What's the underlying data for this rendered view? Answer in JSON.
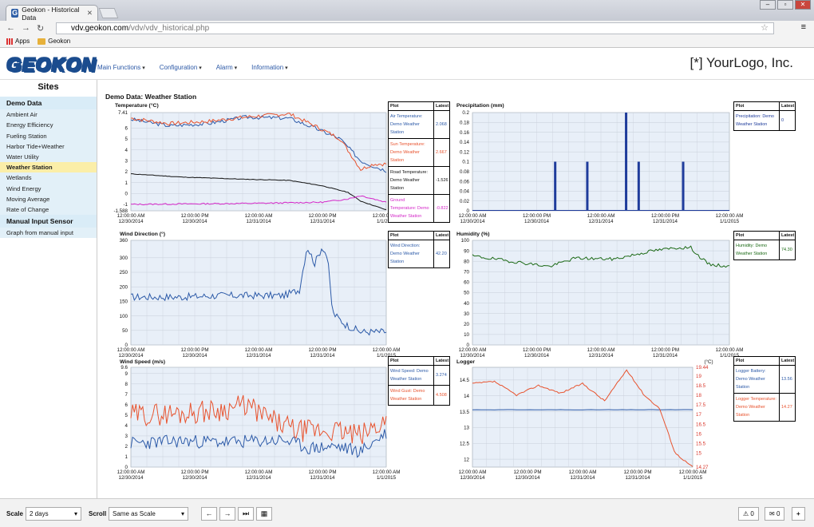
{
  "browser": {
    "tab_title": "Geokon - Historical Data",
    "tab_icon": "G",
    "url_host": "vdv.geokon.com",
    "url_path": "/vdv/vdv_historical.php",
    "bookmarks": [
      "Apps",
      "Geokon"
    ]
  },
  "header": {
    "logo": "GEOKON",
    "nav": [
      "Main Functions",
      "Configuration",
      "Alarm",
      "Information"
    ],
    "your_logo": "[*] YourLogo, Inc."
  },
  "sidebar": {
    "title": "Sites",
    "groups": [
      {
        "label": "Demo Data",
        "items": [
          "Ambient Air",
          "Energy Efficiency",
          "Fueling Station",
          "Harbor Tide+Weather",
          "Water Utility",
          "Weather Station",
          "Wetlands",
          "Wind Energy",
          "Moving Average",
          "Rate of Change"
        ],
        "active": "Weather Station"
      },
      {
        "label": "Manual Input Sensor",
        "items": [
          "Graph from manual input"
        ]
      }
    ]
  },
  "main": {
    "title": "Demo Data: Weather Station"
  },
  "x_ticks": [
    [
      "12:00:00 AM",
      "12/30/2014"
    ],
    [
      "12:00:00 PM",
      "12/30/2014"
    ],
    [
      "12:00:00 AM",
      "12/31/2014"
    ],
    [
      "12:00:00 PM",
      "12/31/2014"
    ],
    [
      "12:00:00 AM",
      "1/1/2015"
    ]
  ],
  "legend_headers": {
    "plot": "Plot",
    "latest": "Latest"
  },
  "chart_data": [
    {
      "type": "line",
      "title": "Temperature (°C)",
      "yticks": [
        "7.41",
        "6",
        "5",
        "4",
        "3",
        "2",
        "1",
        "0",
        "-1",
        "-1.588"
      ],
      "ylim": [
        -1.588,
        7.41
      ],
      "series": [
        {
          "name": "Air Temperature: Demo Weather Station",
          "latest": "2.068",
          "color": "#2c5aa8"
        },
        {
          "name": "Sun Temperature: Demo Weather Station",
          "latest": "2.667",
          "color": "#e8532e"
        },
        {
          "name": "Road Temperature: Demo Weather Station",
          "latest": "-1.526",
          "color": "#111111"
        },
        {
          "name": "Ground Temperature: Demo Weather Station",
          "latest": "-0.822",
          "color": "#d427c8"
        }
      ]
    },
    {
      "type": "bar",
      "title": "Precipitation (mm)",
      "yticks": [
        "0.2",
        "0.18",
        "0.16",
        "0.14",
        "0.12",
        "0.1",
        "0.08",
        "0.06",
        "0.04",
        "0.02",
        "0"
      ],
      "ylim": [
        0,
        0.2
      ],
      "bars_x_fraction": [
        0.322,
        0.447,
        0.598,
        0.647,
        0.82
      ],
      "bars_values": [
        0.1,
        0.1,
        0.2,
        0.1,
        0.1
      ],
      "series": [
        {
          "name": "Precipitation: Demo Weather Station",
          "latest": "0",
          "color": "#1f3c9b"
        }
      ]
    },
    {
      "type": "line",
      "title": "Wind Direction (°)",
      "yticks": [
        "360",
        "300",
        "250",
        "200",
        "150",
        "100",
        "50",
        "0"
      ],
      "ylim": [
        0,
        360
      ],
      "series": [
        {
          "name": "Wind Direction: Demo Weather Station",
          "latest": "42.20",
          "color": "#2c5aa8"
        }
      ]
    },
    {
      "type": "line",
      "title": "Humidity (%)",
      "yticks": [
        "100",
        "90",
        "80",
        "70",
        "60",
        "50",
        "40",
        "30",
        "20",
        "10",
        "0"
      ],
      "ylim": [
        0,
        100
      ],
      "series": [
        {
          "name": "Humidity: Demo Weather Station",
          "latest": "74.30",
          "color": "#1c6a16"
        }
      ]
    },
    {
      "type": "line",
      "title": "Wind Speed (m/s)",
      "yticks": [
        "9.6",
        "9",
        "8",
        "7",
        "6",
        "5",
        "4",
        "3",
        "2",
        "1",
        "0"
      ],
      "ylim": [
        0,
        9.6
      ],
      "series": [
        {
          "name": "Wind Speed: Demo Weather Station",
          "latest": "3.274",
          "color": "#2c5aa8"
        },
        {
          "name": "Wind Gust: Demo Weather Station",
          "latest": "4.508",
          "color": "#e8532e"
        }
      ]
    },
    {
      "type": "line",
      "title": "Logger",
      "yticks": [
        "14.5",
        "14",
        "13.5",
        "13",
        "12.5",
        "12"
      ],
      "ylim": [
        11.75,
        14.9
      ],
      "y2unit": "(°C)",
      "y2ticks": [
        "19.44",
        "19",
        "18.5",
        "18",
        "17.5",
        "17",
        "16.5",
        "16",
        "15.5",
        "15",
        "14.27"
      ],
      "y2lim": [
        14.27,
        19.44
      ],
      "series": [
        {
          "name": "Logger Battery: Demo Weather Station",
          "latest": "13.56",
          "color": "#2c5aa8"
        },
        {
          "name": "Logger Temperature: Demo Weather Station",
          "latest": "14.27",
          "color": "#e8532e"
        }
      ]
    }
  ],
  "bottom": {
    "scale_label": "Scale",
    "scale_value": "2 days",
    "scroll_label": "Scroll",
    "scroll_value": "Same as Scale",
    "nav_icons": [
      "arrow-left-icon",
      "arrow-right-icon",
      "skip-end-icon",
      "table-icon"
    ],
    "alarm_count": "0",
    "message_count": "0",
    "add": "+"
  }
}
